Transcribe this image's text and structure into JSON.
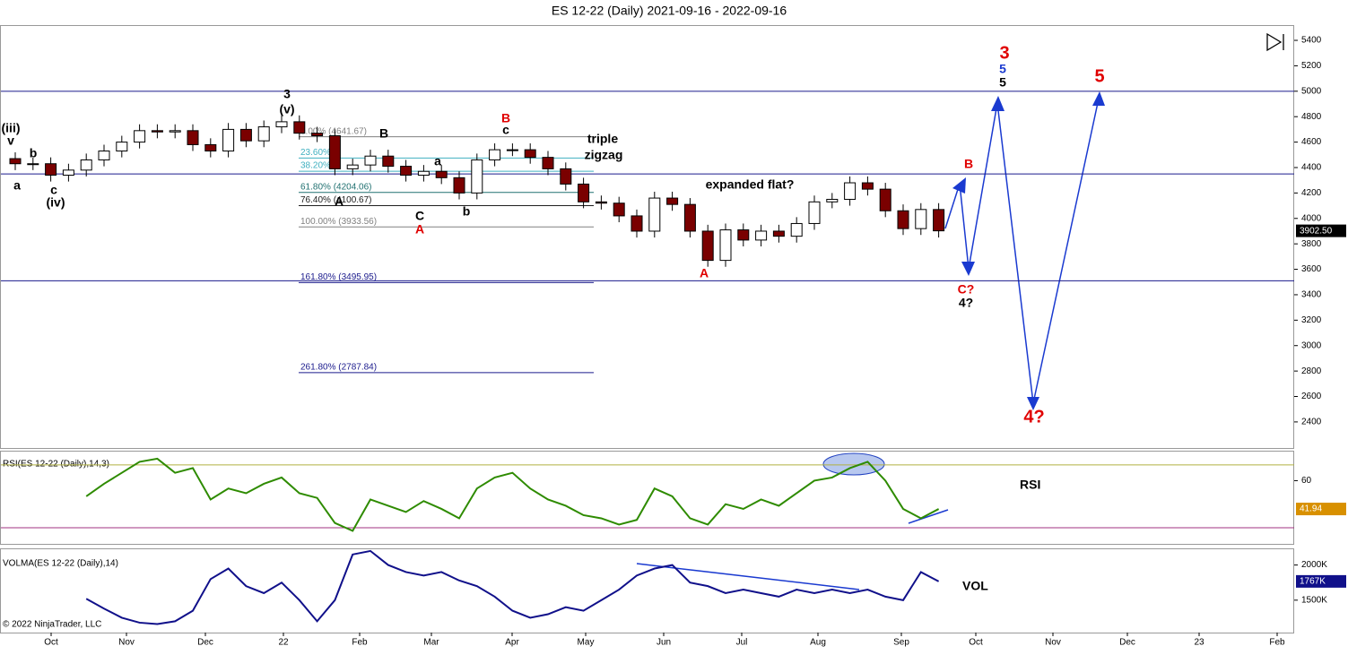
{
  "chart_data": [
    {
      "type": "candlestick",
      "title": "ES 12-22 (Daily)  2021-09-16 - 2022-09-16",
      "x_labels": [
        "Oct",
        "Nov",
        "Dec",
        "22",
        "Feb",
        "Mar",
        "Apr",
        "May",
        "Jun",
        "Jul",
        "Aug",
        "Sep",
        "Oct",
        "Nov",
        "Dec",
        "23",
        "Feb"
      ],
      "open": [
        4470,
        4430,
        4430,
        4340,
        4380,
        4460,
        4530,
        4600,
        4690,
        4680,
        4690,
        4580,
        4530,
        4700,
        4610,
        4720,
        4760,
        4670,
        4650,
        4390,
        4420,
        4490,
        4410,
        4340,
        4370,
        4320,
        4200,
        4460,
        4540,
        4540,
        4480,
        4390,
        4270,
        4130,
        4120,
        4020,
        3900,
        4160,
        4110,
        3900,
        3670,
        3910,
        3830,
        3900,
        3860,
        3960,
        4130,
        4150,
        4280,
        4230,
        4060,
        3920,
        4070
      ],
      "high": [
        4520,
        4480,
        4480,
        4430,
        4510,
        4580,
        4650,
        4740,
        4740,
        4740,
        4740,
        4630,
        4750,
        4750,
        4770,
        4810,
        4810,
        4720,
        4700,
        4470,
        4540,
        4540,
        4460,
        4420,
        4420,
        4370,
        4510,
        4590,
        4590,
        4590,
        4530,
        4440,
        4320,
        4180,
        4170,
        4070,
        4210,
        4210,
        4160,
        3950,
        3960,
        3960,
        3950,
        3950,
        4010,
        4180,
        4200,
        4330,
        4330,
        4280,
        4110,
        4120,
        4120
      ],
      "low": [
        4380,
        4380,
        4290,
        4290,
        4330,
        4410,
        4480,
        4550,
        4630,
        4630,
        4530,
        4480,
        4480,
        4560,
        4560,
        4670,
        4620,
        4600,
        4340,
        4340,
        4370,
        4360,
        4290,
        4290,
        4270,
        4150,
        4150,
        4410,
        4490,
        4430,
        4340,
        4220,
        4080,
        4070,
        3970,
        3850,
        3850,
        4060,
        3850,
        3620,
        3620,
        3780,
        3780,
        3810,
        3810,
        3910,
        4080,
        4100,
        4180,
        4010,
        3870,
        3870,
        3850
      ],
      "close": [
        4430,
        4430,
        4340,
        4380,
        4460,
        4530,
        4600,
        4690,
        4680,
        4690,
        4580,
        4530,
        4700,
        4610,
        4720,
        4760,
        4670,
        4650,
        4390,
        4420,
        4490,
        4410,
        4340,
        4370,
        4320,
        4200,
        4460,
        4540,
        4540,
        4480,
        4390,
        4270,
        4130,
        4120,
        4020,
        3900,
        4160,
        4110,
        3900,
        3670,
        3910,
        3830,
        3900,
        3860,
        3960,
        4130,
        4150,
        4280,
        4230,
        4060,
        3920,
        4070,
        3902.5
      ],
      "last_value_label": "3902.50",
      "up_color": "#ffffff",
      "down_color": "#7a0000",
      "ylim": [
        2195,
        5520
      ],
      "yticks": [
        2400,
        2600,
        2800,
        3000,
        3200,
        3400,
        3600,
        3800,
        4000,
        4200,
        4400,
        4600,
        4800,
        5000,
        5200,
        5400
      ],
      "levels": [
        5000,
        4350,
        3510
      ],
      "level_color": "#1a1a8c",
      "fib": [
        {
          "label": "0.00% (4641.67)",
          "value": 4641.67,
          "color": "#808080"
        },
        {
          "label": "23.60%",
          "value": 4474.6,
          "color": "#40b0c0"
        },
        {
          "label": "38.20%",
          "value": 4371.2,
          "color": "#40b0c0"
        },
        {
          "label": "61.80% (4204.06)",
          "value": 4204.06,
          "color": "#207070"
        },
        {
          "label": "76.40% (4100.67)",
          "value": 4100.67,
          "color": "#202020"
        },
        {
          "label": "100.00% (3933.56)",
          "value": 3933.56,
          "color": "#808080"
        },
        {
          "label": "161.80% (3495.95)",
          "value": 3495.95,
          "color": "#1a1a8c"
        },
        {
          "label": "261.80% (2787.84)",
          "value": 2787.84,
          "color": "#1a1a8c"
        }
      ],
      "annotations": [
        {
          "text": "(iii)",
          "color": "#000"
        },
        {
          "text": "v",
          "color": "#000"
        },
        {
          "text": "a",
          "color": "#000"
        },
        {
          "text": "b",
          "color": "#000"
        },
        {
          "text": "c",
          "color": "#000"
        },
        {
          "text": "(iv)",
          "color": "#000"
        },
        {
          "text": "3",
          "color": "#000"
        },
        {
          "text": "(v)",
          "color": "#000"
        },
        {
          "text": "B",
          "color": "#000"
        },
        {
          "text": "A",
          "color": "#000"
        },
        {
          "text": "C",
          "color": "#000"
        },
        {
          "text": "A",
          "color": "#e00000"
        },
        {
          "text": "a",
          "color": "#000"
        },
        {
          "text": "b",
          "color": "#000"
        },
        {
          "text": "B",
          "color": "#e00000"
        },
        {
          "text": "c",
          "color": "#000"
        },
        {
          "text": "triple",
          "color": "#000"
        },
        {
          "text": "zigzag",
          "color": "#000"
        },
        {
          "text": "expanded flat?",
          "color": "#000"
        },
        {
          "text": "A",
          "color": "#e00000"
        },
        {
          "text": "3",
          "color": "#e00000"
        },
        {
          "text": "5",
          "color": "#1a3ad0"
        },
        {
          "text": "5",
          "color": "#000"
        },
        {
          "text": "5",
          "color": "#e00000"
        },
        {
          "text": "B",
          "color": "#e00000"
        },
        {
          "text": "C?",
          "color": "#e00000"
        },
        {
          "text": "4?",
          "color": "#000"
        },
        {
          "text": "4?",
          "color": "#e00000"
        }
      ]
    },
    {
      "type": "line",
      "title": "RSI(ES 12-22 (Daily),14,3)",
      "label": "RSI",
      "color": "#2e8b00",
      "values": [
        null,
        null,
        null,
        null,
        50,
        58,
        65,
        72,
        74,
        65,
        68,
        48,
        55,
        52,
        58,
        62,
        52,
        49,
        33,
        28,
        48,
        44,
        40,
        47,
        42,
        36,
        55,
        62,
        65,
        55,
        48,
        44,
        38,
        36,
        32,
        35,
        55,
        50,
        36,
        32,
        45,
        42,
        48,
        44,
        52,
        60,
        62,
        68,
        72,
        60,
        42,
        36,
        41.94
      ],
      "ylim": [
        19.7,
        79.1
      ],
      "yticks": [
        60
      ],
      "levels": [
        70,
        30
      ],
      "level_colors": [
        "#b0b040",
        "#a03080"
      ]
    },
    {
      "type": "line",
      "title": "VOLMA(ES 12-22 (Daily),14)",
      "label": "VOL",
      "color": "#10108a",
      "values": [
        null,
        null,
        null,
        null,
        1520000,
        1380000,
        1250000,
        1180000,
        1160000,
        1200000,
        1350000,
        1800000,
        1950000,
        1700000,
        1600000,
        1750000,
        1500000,
        1200000,
        1500000,
        2150000,
        2200000,
        2000000,
        1900000,
        1850000,
        1900000,
        1780000,
        1700000,
        1550000,
        1350000,
        1250000,
        1300000,
        1400000,
        1350000,
        1500000,
        1650000,
        1850000,
        1950000,
        2000000,
        1750000,
        1700000,
        1600000,
        1650000,
        1600000,
        1550000,
        1650000,
        1600000,
        1650000,
        1600000,
        1650000,
        1550000,
        1500000,
        1900000,
        1767000
      ],
      "last_value_label": "1767K",
      "ylim": [
        1039000,
        2237000
      ],
      "yticks": [
        {
          "value": 2000000,
          "label": "2000K"
        },
        {
          "value": 1500000,
          "label": "1500K"
        }
      ],
      "copyright": "© 2022 NinjaTrader, LLC"
    }
  ]
}
